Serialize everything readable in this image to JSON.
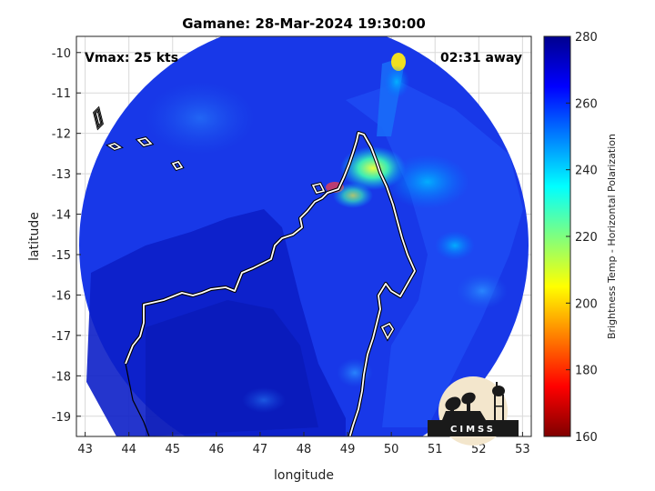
{
  "title": "Gamane: 28-Mar-2024 19:30:00",
  "annotations": {
    "vmax": "Vmax: 25 kts",
    "time_away": "02:31 away"
  },
  "logo": {
    "text": "CIMSS"
  },
  "map": {
    "xlabel": "longitude",
    "ylabel": "latitude",
    "xlim": [
      42.8,
      53.2
    ],
    "ylim": [
      -19.5,
      -9.6
    ],
    "xticks": [
      "43",
      "44",
      "45",
      "46",
      "47",
      "48",
      "49",
      "50",
      "51",
      "52",
      "53"
    ],
    "yticks": [
      "-10",
      "-11",
      "-12",
      "-13",
      "-14",
      "-15",
      "-16",
      "-17",
      "-18",
      "-19"
    ],
    "grid": true,
    "swath_center": [
      48.15,
      -14.3
    ],
    "swath_radius_lon": 5.3
  },
  "colorbar": {
    "label": "Brightness Temp - Horizontal Polarization",
    "range": [
      160,
      280
    ],
    "ticks": [
      "160",
      "180",
      "200",
      "220",
      "240",
      "260",
      "280"
    ],
    "colormap": [
      "#7f0000",
      "#ff0000",
      "#ff7f00",
      "#ffff00",
      "#7fff7f",
      "#00ffff",
      "#007fff",
      "#0000ff",
      "#00008f"
    ]
  }
}
